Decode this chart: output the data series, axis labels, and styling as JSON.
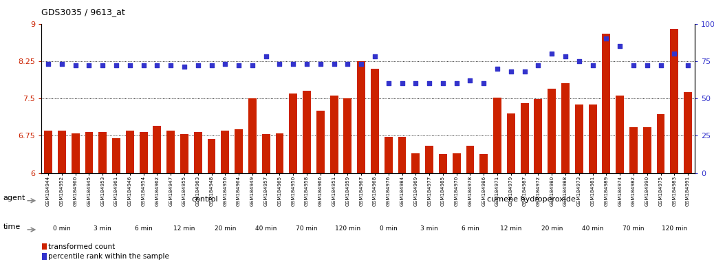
{
  "title": "GDS3035 / 9613_at",
  "samples": [
    "GSM184944",
    "GSM184952",
    "GSM184960",
    "GSM184945",
    "GSM184953",
    "GSM184961",
    "GSM184946",
    "GSM184954",
    "GSM184962",
    "GSM184947",
    "GSM184955",
    "GSM184963",
    "GSM184948",
    "GSM184956",
    "GSM184964",
    "GSM184949",
    "GSM184957",
    "GSM184965",
    "GSM184950",
    "GSM184958",
    "GSM184966",
    "GSM184951",
    "GSM184959",
    "GSM184967",
    "GSM184968",
    "GSM184976",
    "GSM184984",
    "GSM184969",
    "GSM184977",
    "GSM184985",
    "GSM184970",
    "GSM184978",
    "GSM184986",
    "GSM184971",
    "GSM184979",
    "GSM184987",
    "GSM184972",
    "GSM184980",
    "GSM184988",
    "GSM184973",
    "GSM184981",
    "GSM184989",
    "GSM184974",
    "GSM184982",
    "GSM184990",
    "GSM184975",
    "GSM184983",
    "GSM184991"
  ],
  "bar_values": [
    6.85,
    6.85,
    6.8,
    6.82,
    6.82,
    6.7,
    6.85,
    6.82,
    6.95,
    6.85,
    6.78,
    6.82,
    6.68,
    6.85,
    6.88,
    7.5,
    6.78,
    6.8,
    7.6,
    7.65,
    7.25,
    7.55,
    7.5,
    8.25,
    8.1,
    6.72,
    6.72,
    6.4,
    6.55,
    6.38,
    6.4,
    6.55,
    6.38,
    7.52,
    7.2,
    7.4,
    7.48,
    7.7,
    7.8,
    7.38,
    7.38,
    8.8,
    7.55,
    6.92,
    6.92,
    7.18,
    8.9,
    7.62
  ],
  "dot_values": [
    73,
    73,
    72,
    72,
    72,
    72,
    72,
    72,
    72,
    72,
    71,
    72,
    72,
    73,
    72,
    72,
    78,
    73,
    73,
    73,
    73,
    73,
    73,
    73,
    78,
    60,
    60,
    60,
    60,
    60,
    60,
    62,
    60,
    70,
    68,
    68,
    72,
    80,
    78,
    75,
    72,
    90,
    85,
    72,
    72,
    72,
    80,
    72
  ],
  "ylim_left": [
    6.0,
    9.0
  ],
  "ylim_right": [
    0,
    100
  ],
  "yticks_left": [
    6.0,
    6.75,
    7.5,
    8.25,
    9.0
  ],
  "yticks_right": [
    0,
    25,
    50,
    75,
    100
  ],
  "bar_color": "#cc2200",
  "dot_color": "#3333cc",
  "agent_sections": [
    {
      "label": "control",
      "start": 0,
      "end": 24,
      "color": "#ccffcc"
    },
    {
      "label": "cumene hydroperoxide",
      "start": 24,
      "end": 48,
      "color": "#55ee33"
    }
  ],
  "time_sections": [
    {
      "label": "0 min",
      "start": 0,
      "end": 3,
      "color": "#ffffff"
    },
    {
      "label": "3 min",
      "start": 3,
      "end": 6,
      "color": "#ee99ee"
    },
    {
      "label": "6 min",
      "start": 6,
      "end": 9,
      "color": "#ffffff"
    },
    {
      "label": "12 min",
      "start": 9,
      "end": 12,
      "color": "#ee99ee"
    },
    {
      "label": "20 min",
      "start": 12,
      "end": 15,
      "color": "#ee99ee"
    },
    {
      "label": "40 min",
      "start": 15,
      "end": 18,
      "color": "#ee99ee"
    },
    {
      "label": "70 min",
      "start": 18,
      "end": 21,
      "color": "#cc44cc"
    },
    {
      "label": "120 min",
      "start": 21,
      "end": 24,
      "color": "#cc44cc"
    },
    {
      "label": "0 min",
      "start": 24,
      "end": 27,
      "color": "#ffffff"
    },
    {
      "label": "3 min",
      "start": 27,
      "end": 30,
      "color": "#ee99ee"
    },
    {
      "label": "6 min",
      "start": 30,
      "end": 33,
      "color": "#ffffff"
    },
    {
      "label": "12 min",
      "start": 33,
      "end": 36,
      "color": "#ee99ee"
    },
    {
      "label": "20 min",
      "start": 36,
      "end": 39,
      "color": "#ee99ee"
    },
    {
      "label": "40 min",
      "start": 39,
      "end": 42,
      "color": "#ee99ee"
    },
    {
      "label": "70 min",
      "start": 42,
      "end": 45,
      "color": "#cc44cc"
    },
    {
      "label": "120 min",
      "start": 45,
      "end": 48,
      "color": "#cc44cc"
    }
  ]
}
